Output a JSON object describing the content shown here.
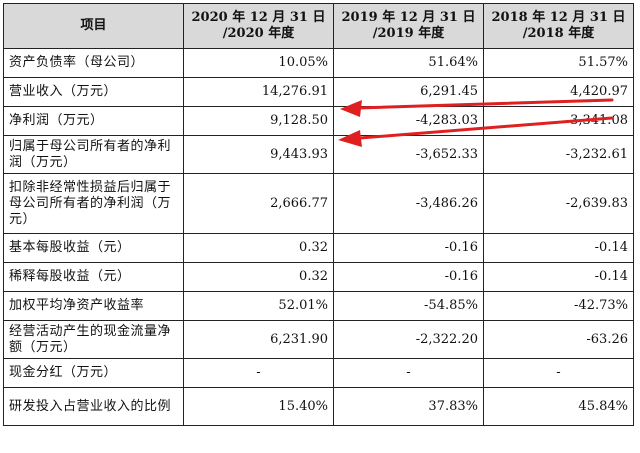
{
  "table": {
    "header": {
      "item": "项目",
      "cols": [
        {
          "line1": "2020 年 12 月 31 日",
          "line2": "/2020 年度"
        },
        {
          "line1": "2019 年 12 月 31 日",
          "line2": "/2019 年度"
        },
        {
          "line1": "2018 年 12 月 31 日",
          "line2": "/2018 年度"
        }
      ]
    },
    "rows": [
      {
        "label": "资产负债率（母公司）",
        "values": [
          "10.05%",
          "51.64%",
          "51.57%"
        ]
      },
      {
        "label": "营业收入（万元）",
        "values": [
          "14,276.91",
          "6,291.45",
          "4,420.97"
        ]
      },
      {
        "label": "净利润（万元）",
        "values": [
          "9,128.50",
          "-4,283.03",
          "-3,341.08"
        ]
      },
      {
        "label": "归属于母公司所有者的净利润（万元）",
        "values": [
          "9,443.93",
          "-3,652.33",
          "-3,232.61"
        ]
      },
      {
        "label": "扣除非经常性损益后归属于母公司所有者的净利润（万元）",
        "values": [
          "2,666.77",
          "-3,486.26",
          "-2,639.83"
        ]
      },
      {
        "label": "基本每股收益（元）",
        "values": [
          "0.32",
          "-0.16",
          "-0.14"
        ]
      },
      {
        "label": "稀释每股收益（元）",
        "values": [
          "0.32",
          "-0.16",
          "-0.14"
        ]
      },
      {
        "label": "加权平均净资产收益率",
        "values": [
          "52.01%",
          "-54.85%",
          "-42.73%"
        ]
      },
      {
        "label": "经营活动产生的现金流量净额（万元）",
        "values": [
          "6,231.90",
          "-2,322.20",
          "-63.26"
        ]
      },
      {
        "label": "现金分红（万元）",
        "values": [
          "-",
          "-",
          "-"
        ]
      },
      {
        "label": "研发投入占营业收入的比例",
        "values": [
          "15.40%",
          "37.83%",
          "45.84%"
        ]
      }
    ]
  },
  "annotations": {
    "arrow_color": "#e02020"
  }
}
